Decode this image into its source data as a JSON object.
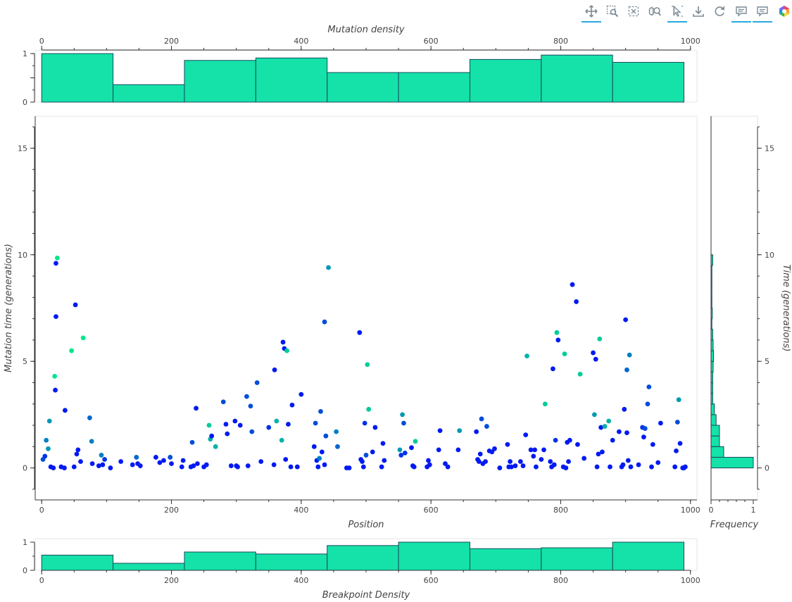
{
  "toolbar": {
    "tools": [
      {
        "name": "pan-tool",
        "icon": "pan-icon",
        "active": true
      },
      {
        "name": "box-zoom-tool",
        "icon": "box-zoom-icon",
        "active": false
      },
      {
        "name": "box-select-tool",
        "icon": "box-select-icon",
        "active": false
      },
      {
        "name": "wheel-zoom-tool",
        "icon": "wheel-zoom-icon",
        "active": false
      },
      {
        "name": "tap-select-tool",
        "icon": "tap-select-icon",
        "active": true
      },
      {
        "name": "save-tool",
        "icon": "save-icon",
        "active": false
      },
      {
        "name": "reset-tool",
        "icon": "reset-icon",
        "active": false
      },
      {
        "name": "hover-tool-1",
        "icon": "hover-icon",
        "active": true
      },
      {
        "name": "hover-tool-2",
        "icon": "hover-icon",
        "active": true
      },
      {
        "name": "bokeh-logo",
        "icon": "bokeh-logo-icon",
        "active": false
      }
    ]
  },
  "chart_data": [
    {
      "type": "bar",
      "id": "mutation-density",
      "xlabel": "Mutation density",
      "xlim": [
        0,
        1000
      ],
      "ylim": [
        0,
        1
      ],
      "x_ticks": [
        0,
        200,
        400,
        600,
        800,
        1000
      ],
      "y_ticks": [
        0,
        0.5,
        1
      ],
      "y_tick_labels": [
        "0",
        "",
        "1"
      ],
      "bins": [
        [
          0,
          110
        ],
        [
          110,
          220
        ],
        [
          220,
          330
        ],
        [
          330,
          440
        ],
        [
          440,
          550
        ],
        [
          550,
          660
        ],
        [
          660,
          770
        ],
        [
          770,
          880
        ],
        [
          880,
          990
        ]
      ],
      "values": [
        1.0,
        0.36,
        0.86,
        0.91,
        0.61,
        0.61,
        0.88,
        0.97,
        0.82
      ],
      "fill": "#14e2a8",
      "stroke": "#1a4b5e"
    },
    {
      "type": "scatter",
      "id": "mutations",
      "xlabel": "Position",
      "ylabel": "Mutation time (generations)",
      "xlim": [
        0,
        1000
      ],
      "ylim": [
        -1.5,
        16.5
      ],
      "x_ticks": [
        0,
        200,
        400,
        600,
        800,
        1000
      ],
      "y_ticks": [
        0,
        5,
        10,
        15
      ],
      "color_scale": [
        "#0000ff",
        "#00ff80"
      ],
      "points": [
        [
          2,
          0.4,
          0.3
        ],
        [
          5,
          0.55,
          0.2
        ],
        [
          7,
          1.3,
          0.5
        ],
        [
          10,
          0.9,
          0.6
        ],
        [
          12,
          2.2,
          0.6
        ],
        [
          14,
          0.05,
          0.1
        ],
        [
          18,
          0.0,
          0.1
        ],
        [
          20,
          4.3,
          0.9
        ],
        [
          21,
          3.65,
          0.1
        ],
        [
          22,
          7.1,
          0.1
        ],
        [
          22,
          9.6,
          0.1
        ],
        [
          24,
          9.85,
          0.9
        ],
        [
          30,
          0.05,
          0.1
        ],
        [
          35,
          0.0,
          0.1
        ],
        [
          36,
          2.7,
          0.1
        ],
        [
          46,
          5.5,
          0.9
        ],
        [
          50,
          0.05,
          0.1
        ],
        [
          52,
          7.65,
          0.1
        ],
        [
          54,
          0.65,
          0.1
        ],
        [
          56,
          0.85,
          0.1
        ],
        [
          60,
          0.3,
          0.1
        ],
        [
          64,
          6.1,
          0.9
        ],
        [
          74,
          2.35,
          0.4
        ],
        [
          77,
          1.25,
          0.5
        ],
        [
          78,
          0.2,
          0.1
        ],
        [
          88,
          0.1,
          0.1
        ],
        [
          92,
          0.6,
          0.5
        ],
        [
          94,
          0.15,
          0.1
        ],
        [
          97,
          0.4,
          0.2
        ],
        [
          106,
          0.0,
          0.1
        ],
        [
          122,
          0.3,
          0.1
        ],
        [
          140,
          0.15,
          0.1
        ],
        [
          146,
          0.5,
          0.4
        ],
        [
          148,
          0.2,
          0.1
        ],
        [
          152,
          0.1,
          0.1
        ],
        [
          176,
          0.5,
          0.1
        ],
        [
          182,
          0.25,
          0.1
        ],
        [
          188,
          0.35,
          0.1
        ],
        [
          198,
          0.5,
          0.3
        ],
        [
          200,
          0.2,
          0.1
        ],
        [
          216,
          0.05,
          0.1
        ],
        [
          218,
          0.35,
          0.1
        ],
        [
          230,
          0.05,
          0.1
        ],
        [
          232,
          1.2,
          0.3
        ],
        [
          234,
          0.1,
          0.1
        ],
        [
          238,
          2.8,
          0.1
        ],
        [
          240,
          0.2,
          0.1
        ],
        [
          250,
          0.05,
          0.1
        ],
        [
          254,
          0.15,
          0.1
        ],
        [
          258,
          2.0,
          0.8
        ],
        [
          260,
          1.35,
          0.7
        ],
        [
          262,
          1.5,
          0.1
        ],
        [
          268,
          1.0,
          0.7
        ],
        [
          280,
          3.1,
          0.3
        ],
        [
          284,
          2.05,
          0.1
        ],
        [
          286,
          1.6,
          0.1
        ],
        [
          292,
          0.1,
          0.1
        ],
        [
          298,
          2.2,
          0.1
        ],
        [
          300,
          0.1,
          0.1
        ],
        [
          302,
          0.05,
          0.1
        ],
        [
          306,
          2.0,
          0.1
        ],
        [
          316,
          3.35,
          0.3
        ],
        [
          318,
          0.1,
          0.1
        ],
        [
          322,
          2.9,
          0.3
        ],
        [
          324,
          1.7,
          0.3
        ],
        [
          332,
          4.0,
          0.3
        ],
        [
          338,
          0.3,
          0.1
        ],
        [
          350,
          1.9,
          0.2
        ],
        [
          358,
          0.15,
          0.1
        ],
        [
          359,
          4.6,
          0.1
        ],
        [
          362,
          2.2,
          0.7
        ],
        [
          370,
          1.3,
          0.7
        ],
        [
          372,
          5.9,
          0.1
        ],
        [
          374,
          5.6,
          0.1
        ],
        [
          376,
          0.4,
          0.1
        ],
        [
          378,
          5.5,
          0.8
        ],
        [
          380,
          2.05,
          0.1
        ],
        [
          384,
          0.05,
          0.1
        ],
        [
          386,
          2.95,
          0.1
        ],
        [
          394,
          0.05,
          0.1
        ],
        [
          400,
          3.45,
          0.1
        ],
        [
          420,
          1.0,
          0.1
        ],
        [
          422,
          2.1,
          0.3
        ],
        [
          424,
          0.35,
          0.1
        ],
        [
          426,
          0.05,
          0.1
        ],
        [
          428,
          0.45,
          0.5
        ],
        [
          430,
          2.65,
          0.3
        ],
        [
          432,
          0.75,
          0.1
        ],
        [
          436,
          0.15,
          0.1
        ],
        [
          436,
          6.85,
          0.3
        ],
        [
          438,
          1.5,
          0.3
        ],
        [
          442,
          9.4,
          0.6
        ],
        [
          454,
          1.7,
          0.5
        ],
        [
          456,
          1.0,
          0.4
        ],
        [
          470,
          0.0,
          0.1
        ],
        [
          474,
          0.0,
          0.1
        ],
        [
          490,
          6.35,
          0.1
        ],
        [
          492,
          0.4,
          0.1
        ],
        [
          494,
          0.3,
          0.1
        ],
        [
          496,
          0.05,
          0.1
        ],
        [
          498,
          2.1,
          0.2
        ],
        [
          500,
          0.6,
          0.3
        ],
        [
          502,
          4.85,
          0.8
        ],
        [
          504,
          2.75,
          0.8
        ],
        [
          510,
          0.75,
          0.1
        ],
        [
          514,
          1.9,
          0.1
        ],
        [
          524,
          0.05,
          0.1
        ],
        [
          526,
          1.15,
          0.1
        ],
        [
          528,
          0.35,
          0.1
        ],
        [
          552,
          0.85,
          0.6
        ],
        [
          554,
          0.6,
          0.2
        ],
        [
          556,
          2.5,
          0.6
        ],
        [
          558,
          2.1,
          0.3
        ],
        [
          560,
          0.7,
          0.2
        ],
        [
          570,
          0.95,
          0.1
        ],
        [
          572,
          0.1,
          0.1
        ],
        [
          574,
          0.05,
          0.1
        ],
        [
          576,
          1.25,
          0.8
        ],
        [
          594,
          0.05,
          0.1
        ],
        [
          596,
          0.35,
          0.1
        ],
        [
          598,
          0.15,
          0.1
        ],
        [
          612,
          0.85,
          0.1
        ],
        [
          614,
          1.75,
          0.1
        ],
        [
          622,
          0.2,
          0.1
        ],
        [
          626,
          0.05,
          0.1
        ],
        [
          642,
          0.85,
          0.1
        ],
        [
          644,
          1.75,
          0.6
        ],
        [
          670,
          1.7,
          0.1
        ],
        [
          672,
          0.4,
          0.1
        ],
        [
          674,
          0.3,
          0.1
        ],
        [
          676,
          0.65,
          0.1
        ],
        [
          678,
          2.3,
          0.3
        ],
        [
          680,
          0.2,
          0.1
        ],
        [
          684,
          0.3,
          0.1
        ],
        [
          686,
          1.95,
          0.3
        ],
        [
          690,
          0.8,
          0.1
        ],
        [
          694,
          0.75,
          0.1
        ],
        [
          698,
          0.9,
          0.1
        ],
        [
          706,
          0.0,
          0.1
        ],
        [
          718,
          1.1,
          0.1
        ],
        [
          720,
          0.05,
          0.1
        ],
        [
          722,
          0.3,
          0.1
        ],
        [
          724,
          0.05,
          0.1
        ],
        [
          730,
          0.1,
          0.1
        ],
        [
          738,
          0.3,
          0.1
        ],
        [
          742,
          0.1,
          0.1
        ],
        [
          746,
          1.55,
          0.1
        ],
        [
          748,
          5.25,
          0.7
        ],
        [
          754,
          0.85,
          0.1
        ],
        [
          758,
          0.55,
          0.1
        ],
        [
          760,
          0.85,
          0.1
        ],
        [
          762,
          0.05,
          0.1
        ],
        [
          770,
          0.4,
          0.1
        ],
        [
          774,
          0.85,
          0.1
        ],
        [
          776,
          3.0,
          0.8
        ],
        [
          784,
          0.3,
          0.1
        ],
        [
          786,
          0.05,
          0.1
        ],
        [
          788,
          4.65,
          0.1
        ],
        [
          790,
          0.15,
          0.1
        ],
        [
          792,
          1.3,
          0.2
        ],
        [
          794,
          6.35,
          0.8
        ],
        [
          796,
          6.0,
          0.1
        ],
        [
          804,
          0.05,
          0.1
        ],
        [
          806,
          5.35,
          0.8
        ],
        [
          808,
          0.0,
          0.1
        ],
        [
          810,
          1.2,
          0.1
        ],
        [
          812,
          0.3,
          0.1
        ],
        [
          814,
          1.3,
          0.1
        ],
        [
          818,
          8.6,
          0.1
        ],
        [
          824,
          7.8,
          0.1
        ],
        [
          826,
          1.1,
          0.1
        ],
        [
          830,
          4.4,
          0.8
        ],
        [
          836,
          0.45,
          0.1
        ],
        [
          850,
          5.4,
          0.1
        ],
        [
          852,
          2.5,
          0.6
        ],
        [
          854,
          5.1,
          0.1
        ],
        [
          856,
          0.05,
          0.1
        ],
        [
          858,
          0.65,
          0.1
        ],
        [
          860,
          6.05,
          0.8
        ],
        [
          862,
          1.9,
          0.1
        ],
        [
          864,
          0.75,
          0.1
        ],
        [
          868,
          1.95,
          0.7
        ],
        [
          874,
          2.2,
          0.7
        ],
        [
          876,
          0.05,
          0.1
        ],
        [
          880,
          1.3,
          0.1
        ],
        [
          890,
          1.7,
          0.1
        ],
        [
          894,
          0.05,
          0.1
        ],
        [
          896,
          0.15,
          0.1
        ],
        [
          898,
          2.75,
          0.1
        ],
        [
          900,
          6.95,
          0.1
        ],
        [
          902,
          4.6,
          0.4
        ],
        [
          902,
          1.65,
          0.1
        ],
        [
          904,
          0.35,
          0.1
        ],
        [
          906,
          5.3,
          0.5
        ],
        [
          908,
          0.05,
          0.1
        ],
        [
          920,
          0.15,
          0.1
        ],
        [
          926,
          1.9,
          0.2
        ],
        [
          928,
          1.45,
          0.1
        ],
        [
          930,
          1.85,
          0.3
        ],
        [
          934,
          3.0,
          0.3
        ],
        [
          936,
          3.8,
          0.3
        ],
        [
          940,
          0.05,
          0.1
        ],
        [
          942,
          1.1,
          0.1
        ],
        [
          950,
          0.25,
          0.1
        ],
        [
          954,
          2.1,
          0.1
        ],
        [
          976,
          0.05,
          0.1
        ],
        [
          978,
          0.8,
          0.1
        ],
        [
          980,
          2.15,
          0.3
        ],
        [
          982,
          3.2,
          0.6
        ],
        [
          984,
          1.15,
          0.1
        ],
        [
          988,
          0.0,
          0.1
        ],
        [
          990,
          0.0,
          0.1
        ],
        [
          992,
          0.05,
          0.1
        ]
      ]
    },
    {
      "type": "bar",
      "id": "time-frequency",
      "orientation": "horizontal",
      "xlabel": "Frequency",
      "ylabel": "Time (generations)",
      "xlim": [
        0,
        1.1
      ],
      "ylim": [
        -1.5,
        16.5
      ],
      "x_ticks": [
        0,
        1
      ],
      "x_minor_ticks": [
        0.2,
        0.4,
        0.6,
        0.8
      ],
      "y_ticks": [
        0,
        5,
        10,
        15
      ],
      "bin_edges": [
        0,
        0.5,
        1.0,
        1.5,
        2.0,
        2.5,
        3.0,
        3.5,
        4.0,
        4.5,
        5.0,
        5.5,
        6.0,
        6.5,
        7.0,
        7.5,
        8.0,
        8.5,
        9.0,
        9.5,
        10.0
      ],
      "values": [
        1.0,
        0.3,
        0.2,
        0.2,
        0.12,
        0.08,
        0.04,
        0.04,
        0.04,
        0.05,
        0.06,
        0.05,
        0.04,
        0.02,
        0.03,
        0.02,
        0.02,
        0.02,
        0.02,
        0.04
      ],
      "fill": "#14e2a8",
      "stroke": "#1a4b5e"
    },
    {
      "type": "bar",
      "id": "breakpoint-density",
      "xlabel": "Breakpoint Density",
      "xlim": [
        0,
        1000
      ],
      "ylim": [
        0,
        1
      ],
      "x_ticks": [
        0,
        200,
        400,
        600,
        800,
        1000
      ],
      "y_ticks": [
        0,
        1
      ],
      "bins": [
        [
          0,
          110
        ],
        [
          110,
          220
        ],
        [
          220,
          330
        ],
        [
          330,
          440
        ],
        [
          440,
          550
        ],
        [
          550,
          660
        ],
        [
          660,
          770
        ],
        [
          770,
          880
        ],
        [
          880,
          990
        ]
      ],
      "values": [
        0.54,
        0.25,
        0.65,
        0.58,
        0.88,
        1.0,
        0.77,
        0.8,
        1.0
      ],
      "fill": "#14e2a8",
      "stroke": "#1a4b5e"
    }
  ]
}
